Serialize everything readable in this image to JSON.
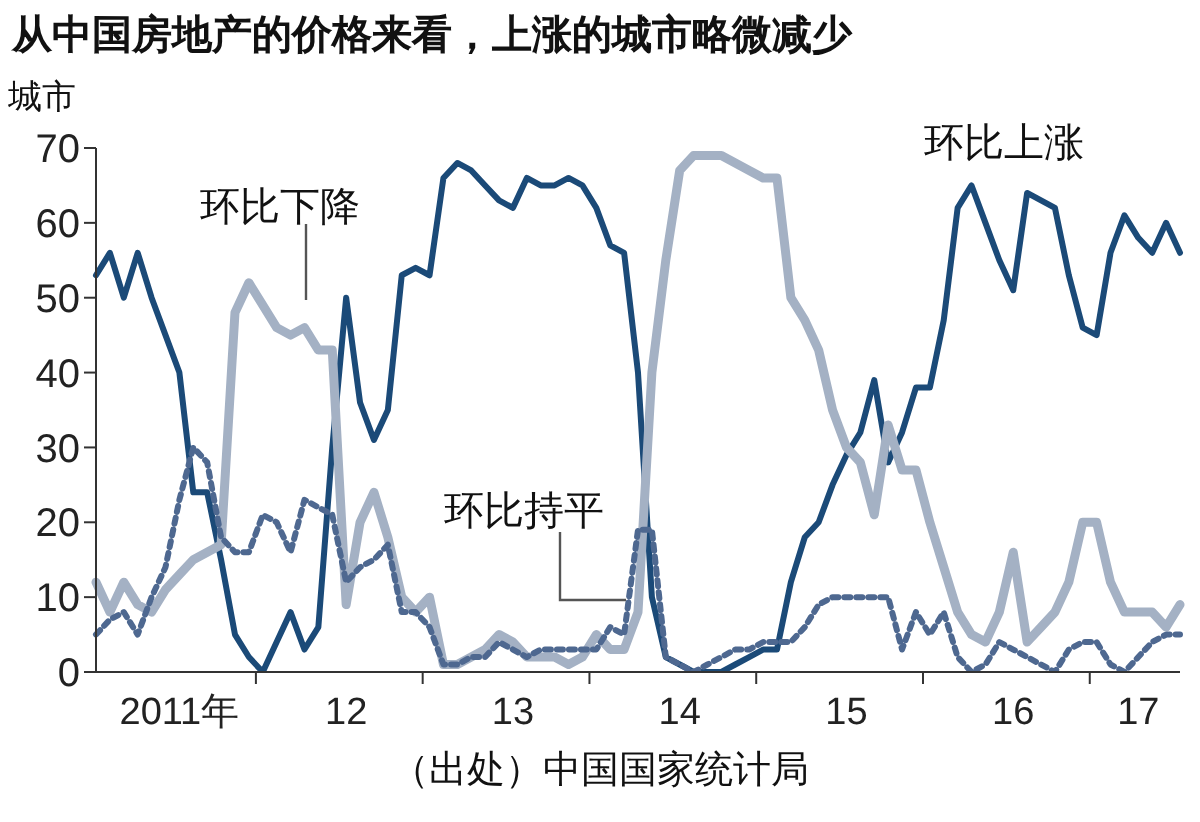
{
  "chart_data": {
    "type": "line",
    "title": "从中国房地产的价格来看，上涨的城市略微减少",
    "ylabel": "城市",
    "annotations": [
      "（出处）中国国家统计局"
    ],
    "categories": [
      null,
      null,
      null,
      null,
      null,
      null,
      "2011年",
      null,
      null,
      null,
      null,
      null,
      null,
      null,
      null,
      null,
      null,
      null,
      "12",
      null,
      null,
      null,
      null,
      null,
      null,
      null,
      null,
      null,
      null,
      null,
      "13",
      null,
      null,
      null,
      null,
      null,
      null,
      null,
      null,
      null,
      null,
      null,
      "14",
      null,
      null,
      null,
      null,
      null,
      null,
      null,
      null,
      null,
      null,
      null,
      "15",
      null,
      null,
      null,
      null,
      null,
      null,
      null,
      null,
      null,
      null,
      null,
      "16",
      null,
      null,
      null,
      null,
      null,
      null,
      null,
      null,
      "17",
      null,
      null,
      null
    ],
    "series": [
      {
        "name": "环比上涨",
        "color": "#1b4a78",
        "values": [
          53,
          56,
          50,
          56,
          50,
          45,
          40,
          24,
          24,
          15,
          5,
          2,
          0,
          4,
          8,
          3,
          6,
          30,
          50,
          36,
          31,
          35,
          53,
          54,
          53,
          66,
          68,
          67,
          65,
          63,
          62,
          66,
          65,
          65,
          66,
          65,
          62,
          57,
          56,
          40,
          10,
          2,
          1,
          0,
          0,
          0,
          1,
          2,
          3,
          3,
          12,
          18,
          20,
          25,
          29,
          32,
          39,
          28,
          32,
          38,
          38,
          47,
          62,
          65,
          60,
          55,
          51,
          64,
          63,
          62,
          53,
          46,
          45,
          56,
          61,
          58,
          56,
          60,
          56
        ]
      },
      {
        "name": "环比下降",
        "color": "#a4b1c4",
        "values": [
          12,
          8,
          12,
          9,
          8,
          11,
          13,
          15,
          16,
          17,
          48,
          52,
          49,
          46,
          45,
          46,
          43,
          43,
          9,
          20,
          24,
          18,
          10,
          8,
          10,
          1,
          1,
          2,
          3,
          5,
          4,
          2,
          2,
          2,
          1,
          2,
          5,
          3,
          3,
          8,
          40,
          55,
          67,
          69,
          69,
          69,
          68,
          67,
          66,
          66,
          50,
          47,
          43,
          35,
          30,
          28,
          21,
          33,
          27,
          27,
          20,
          14,
          8,
          5,
          4,
          8,
          16,
          4,
          6,
          8,
          12,
          20,
          20,
          12,
          8,
          8,
          8,
          6,
          9
        ]
      },
      {
        "name": "环比持平",
        "color": "#4e6890",
        "line_style": "dotted",
        "values": [
          5,
          7,
          8,
          5,
          10,
          14,
          23,
          30,
          28,
          18,
          16,
          16,
          21,
          20,
          16,
          23,
          22,
          21,
          12,
          14,
          15,
          17,
          8,
          8,
          6,
          1,
          1,
          2,
          2,
          4,
          3,
          2,
          3,
          3,
          3,
          3,
          3,
          6,
          5,
          19,
          19,
          2,
          1,
          0,
          1,
          2,
          3,
          3,
          4,
          4,
          4,
          6,
          9,
          10,
          10,
          10,
          10,
          10,
          3,
          8,
          5,
          8,
          2,
          0,
          1,
          4,
          3,
          2,
          1,
          0,
          3,
          4,
          4,
          1,
          0,
          2,
          4,
          5,
          5
        ]
      }
    ],
    "ylim": [
      0,
      70
    ],
    "yticks": [
      0,
      10,
      20,
      30,
      40,
      50,
      60,
      70
    ],
    "grid": false,
    "legend": false
  }
}
